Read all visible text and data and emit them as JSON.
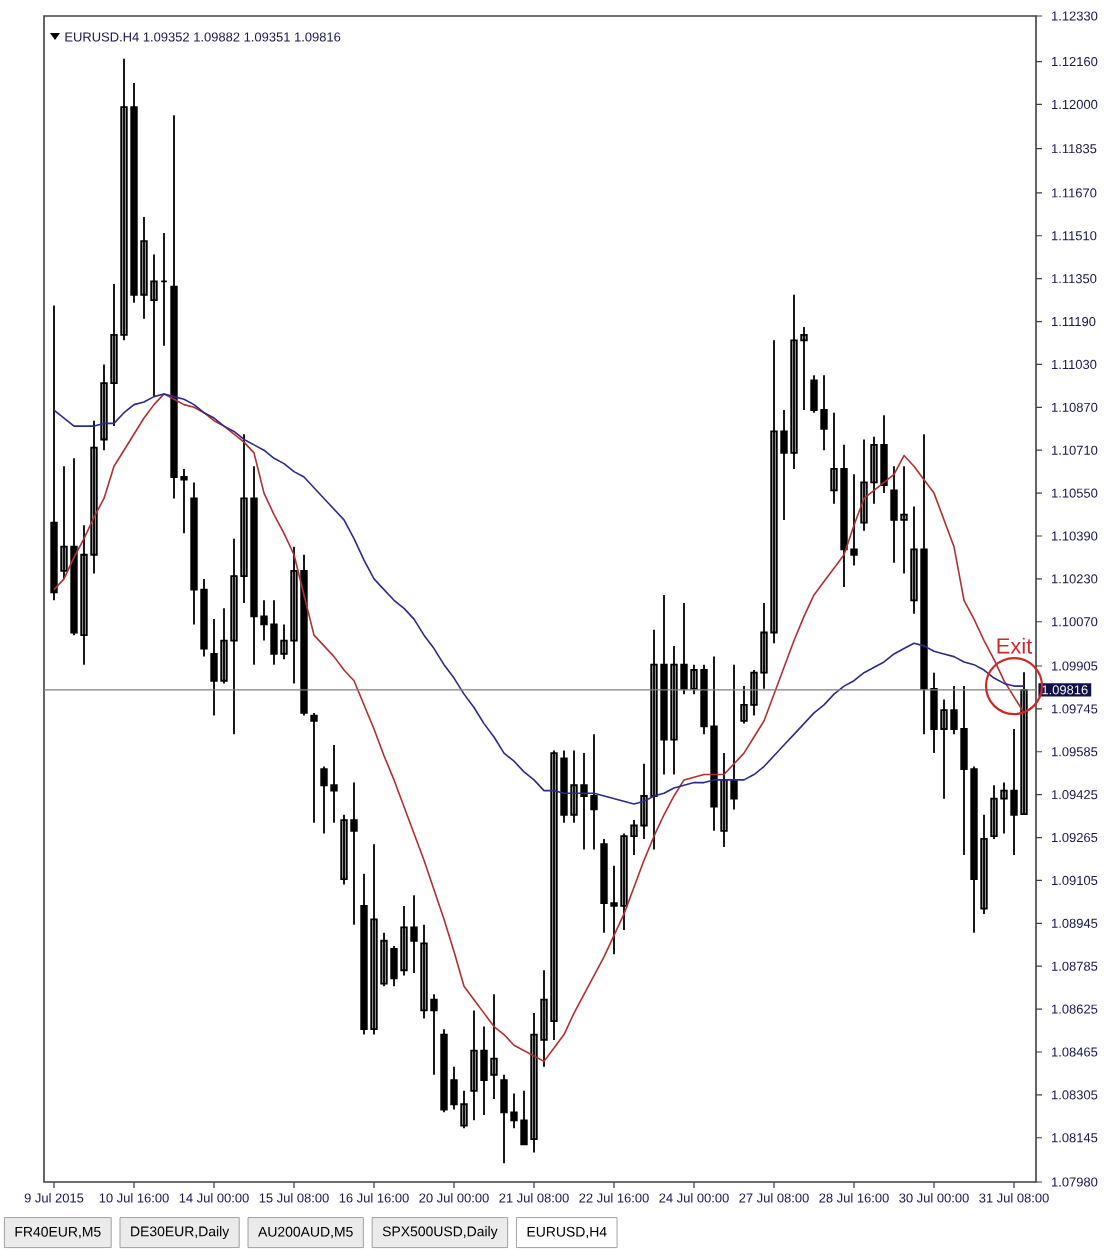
{
  "chart_data": {
    "type": "candlestick",
    "title": "EURUSD.H4  1.09352 1.09882 1.09351 1.09816",
    "color": "#000000",
    "categories": [
      "9 Jul 2015",
      null,
      null,
      null,
      null,
      null,
      null,
      null,
      "10 Jul 16:00",
      null,
      null,
      null,
      null,
      null,
      null,
      null,
      "14 Jul 00:00",
      null,
      null,
      null,
      null,
      null,
      null,
      null,
      "15 Jul 08:00",
      null,
      null,
      null,
      null,
      null,
      null,
      null,
      "16 Jul 16:00",
      null,
      null,
      null,
      null,
      null,
      null,
      null,
      "20 Jul 00:00",
      null,
      null,
      null,
      null,
      null,
      null,
      null,
      "21 Jul 08:00",
      null,
      null,
      null,
      null,
      null,
      null,
      null,
      "22 Jul 16:00",
      null,
      null,
      null,
      null,
      null,
      null,
      null,
      "24 Jul 00:00",
      null,
      null,
      null,
      null,
      null,
      null,
      null,
      "27 Jul 08:00",
      null,
      null,
      null,
      null,
      null,
      null,
      null,
      "28 Jul 16:00",
      null,
      null,
      null,
      null,
      null,
      null,
      null,
      "30 Jul 00:00",
      null,
      null,
      null,
      null,
      null,
      null,
      null,
      "31 Jul 08:00",
      null
    ],
    "ohlc": [
      [
        1.1044,
        1.1125,
        1.1015,
        1.1018
      ],
      [
        1.1026,
        1.1065,
        1.1023,
        1.1035
      ],
      [
        1.1035,
        1.1068,
        1.1002,
        1.1003
      ],
      [
        1.1002,
        1.1043,
        1.0991,
        1.1032
      ],
      [
        1.1032,
        1.1082,
        1.1025,
        1.1072
      ],
      [
        1.1075,
        1.1103,
        1.1071,
        1.1096
      ],
      [
        1.1096,
        1.1133,
        1.108,
        1.1114
      ],
      [
        1.1114,
        1.1217,
        1.1112,
        1.1199
      ],
      [
        1.1199,
        1.1208,
        1.1126,
        1.1129
      ],
      [
        1.1129,
        1.1158,
        1.112,
        1.1149
      ],
      [
        1.1127,
        1.1144,
        1.1091,
        1.1134
      ],
      [
        1.1134,
        1.1152,
        1.111,
        1.1134
      ],
      [
        1.1132,
        1.1196,
        1.1053,
        1.1061
      ],
      [
        1.1061,
        1.1064,
        1.104,
        1.106
      ],
      [
        1.1053,
        1.1059,
        1.1006,
        1.1019
      ],
      [
        1.1019,
        1.1023,
        1.0994,
        1.0997
      ],
      [
        1.0995,
        1.1008,
        1.0972,
        1.0985
      ],
      [
        1.0985,
        1.1012,
        1.0984,
        1.1
      ],
      [
        1.1,
        1.1038,
        1.0965,
        1.1024
      ],
      [
        1.1024,
        1.1077,
        1.1014,
        1.1053
      ],
      [
        1.1053,
        1.1065,
        1.0991,
        1.1009
      ],
      [
        1.1009,
        1.1015,
        1.1,
        1.1006
      ],
      [
        1.1006,
        1.1015,
        1.0991,
        1.0995
      ],
      [
        1.0995,
        1.1006,
        1.0993,
        1.1
      ],
      [
        1.1,
        1.1035,
        1.0984,
        1.1026
      ],
      [
        1.1026,
        1.1032,
        1.0972,
        1.0973
      ],
      [
        1.0972,
        1.0973,
        1.0932,
        1.097
      ],
      [
        1.0952,
        1.0953,
        1.0928,
        1.0946
      ],
      [
        1.0946,
        1.0961,
        1.0932,
        1.0944
      ],
      [
        1.0911,
        1.0935,
        1.0909,
        1.0933
      ],
      [
        1.0933,
        1.0947,
        1.0894,
        1.0929
      ],
      [
        1.0901,
        1.0913,
        1.0853,
        1.0855
      ],
      [
        1.0855,
        1.0924,
        1.0853,
        1.0896
      ],
      [
        1.0872,
        1.0891,
        1.0871,
        1.0888
      ],
      [
        1.0885,
        1.0886,
        1.0871,
        1.0874
      ],
      [
        1.0877,
        1.0901,
        1.0875,
        1.0893
      ],
      [
        1.0893,
        1.0905,
        1.0876,
        1.0888
      ],
      [
        1.0862,
        1.0894,
        1.0859,
        1.0887
      ],
      [
        1.0866,
        1.0868,
        1.0838,
        1.0862
      ],
      [
        1.0853,
        1.0855,
        1.0824,
        1.0825
      ],
      [
        1.0836,
        1.0841,
        1.0825,
        1.0827
      ],
      [
        1.0819,
        1.0832,
        1.0818,
        1.0827
      ],
      [
        1.0832,
        1.0862,
        1.0821,
        1.0847
      ],
      [
        1.0847,
        1.0856,
        1.0823,
        1.0836
      ],
      [
        1.0838,
        1.0868,
        1.0829,
        1.0844
      ],
      [
        1.0836,
        1.0838,
        1.0805,
        1.0824
      ],
      [
        1.0824,
        1.0831,
        1.0818,
        1.0821
      ],
      [
        1.0821,
        1.0832,
        1.0812,
        1.0812
      ],
      [
        1.0814,
        1.0861,
        1.0809,
        1.0853
      ],
      [
        1.0851,
        1.0877,
        1.0841,
        1.0866
      ],
      [
        1.0858,
        1.0959,
        1.0851,
        1.0958
      ],
      [
        1.0956,
        1.0959,
        1.0932,
        1.0935
      ],
      [
        1.0935,
        1.0959,
        1.0932,
        1.0946
      ],
      [
        1.0946,
        1.0958,
        1.0922,
        1.0942
      ],
      [
        1.0942,
        1.0965,
        1.0922,
        1.0937
      ],
      [
        1.0924,
        1.0926,
        1.0891,
        1.0902
      ],
      [
        1.0902,
        1.0916,
        1.0883,
        1.0901
      ],
      [
        1.0901,
        1.0928,
        1.0892,
        1.0927
      ],
      [
        1.0927,
        1.0933,
        1.092,
        1.0931
      ],
      [
        1.0931,
        1.0954,
        1.0926,
        1.0942
      ],
      [
        1.0942,
        1.1004,
        1.0922,
        1.0991
      ],
      [
        1.0991,
        1.1017,
        1.095,
        1.0963
      ],
      [
        1.0963,
        1.0998,
        1.095,
        1.0991
      ],
      [
        1.0991,
        1.1014,
        1.098,
        1.0982
      ],
      [
        1.0982,
        1.0991,
        1.098,
        1.0989
      ],
      [
        1.0989,
        1.0991,
        1.0965,
        1.0968
      ],
      [
        1.0968,
        1.0994,
        1.0929,
        1.0938
      ],
      [
        1.0929,
        1.0958,
        1.0923,
        1.0948
      ],
      [
        1.0948,
        1.0991,
        1.0937,
        1.0941
      ],
      [
        1.097,
        1.0983,
        1.0969,
        1.0976
      ],
      [
        1.0976,
        1.0989,
        1.0972,
        1.0988
      ],
      [
        1.0988,
        1.1014,
        1.0982,
        1.1003
      ],
      [
        1.1003,
        1.1112,
        1.0999,
        1.1078
      ],
      [
        1.1078,
        1.1086,
        1.1045,
        1.107
      ],
      [
        1.107,
        1.1129,
        1.1064,
        1.1112
      ],
      [
        1.1112,
        1.1117,
        1.1086,
        1.1114
      ],
      [
        1.1097,
        1.1099,
        1.1085,
        1.1086
      ],
      [
        1.1086,
        1.1099,
        1.1071,
        1.1079
      ],
      [
        1.1056,
        1.1085,
        1.1051,
        1.1064
      ],
      [
        1.1064,
        1.1073,
        1.102,
        1.1034
      ],
      [
        1.1034,
        1.1062,
        1.1028,
        1.1032
      ],
      [
        1.1044,
        1.1075,
        1.1041,
        1.1059
      ],
      [
        1.1059,
        1.1076,
        1.1051,
        1.1073
      ],
      [
        1.1073,
        1.1084,
        1.1055,
        1.1058
      ],
      [
        1.1056,
        1.1065,
        1.1029,
        1.1045
      ],
      [
        1.1045,
        1.1065,
        1.1025,
        1.1047
      ],
      [
        1.1015,
        1.105,
        1.101,
        1.1034
      ],
      [
        1.1034,
        1.1077,
        1.0965,
        1.0982
      ],
      [
        1.0982,
        1.0988,
        1.0958,
        1.0967
      ],
      [
        1.0967,
        1.0978,
        1.0941,
        1.0974
      ],
      [
        1.0974,
        1.0983,
        1.0965,
        1.0967
      ],
      [
        1.0967,
        1.0983,
        1.092,
        1.0952
      ],
      [
        1.0952,
        1.0953,
        1.0891,
        1.0911
      ],
      [
        1.09,
        1.0935,
        1.0898,
        1.0926
      ],
      [
        1.0927,
        1.0946,
        1.0926,
        1.0941
      ],
      [
        1.0941,
        1.0947,
        1.0928,
        1.0944
      ],
      [
        1.0944,
        1.0967,
        1.092,
        1.0935
      ],
      [
        1.09352,
        1.09882,
        1.09351,
        1.09816
      ]
    ],
    "series": [
      {
        "type": "line",
        "color": "#b03030",
        "values": [
          1.1019,
          1.1023,
          1.1031,
          1.1038,
          1.1046,
          1.1053,
          1.1065,
          1.1071,
          1.1077,
          1.1083,
          1.1088,
          1.1092,
          1.109,
          1.1088,
          1.1087,
          1.1085,
          1.1082,
          1.108,
          1.1077,
          1.1074,
          1.107,
          1.1055,
          1.1047,
          1.104,
          1.1032,
          1.1017,
          1.1002,
          1.0998,
          1.0994,
          1.0989,
          1.0985,
          1.0976,
          1.0967,
          1.0957,
          1.0948,
          1.0938,
          1.0928,
          1.0918,
          1.0907,
          1.0896,
          1.0884,
          1.0871,
          1.0866,
          1.0861,
          1.0856,
          1.0853,
          1.0849,
          1.0847,
          1.0845,
          1.0843,
          1.0848,
          1.0853,
          1.0861,
          1.0868,
          1.0875,
          1.0882,
          1.089,
          1.0898,
          1.0908,
          1.0918,
          1.0927,
          1.0935,
          1.0942,
          1.0948,
          1.0949,
          1.095,
          1.095,
          1.095,
          1.0954,
          1.0958,
          1.0964,
          1.097,
          1.098,
          1.099,
          1.1,
          1.1009,
          1.1017,
          1.1022,
          1.1027,
          1.1032,
          1.1043,
          1.1053,
          1.1056,
          1.1059,
          1.1062,
          1.1069,
          1.1065,
          1.106,
          1.1055,
          1.1045,
          1.1035,
          1.1015,
          1.1008,
          1.1,
          1.0993,
          1.0985,
          1.0979,
          1.0973
        ]
      },
      {
        "type": "line",
        "color": "#2b2b8c",
        "values": [
          1.1086,
          1.1083,
          1.108,
          1.108,
          1.108,
          1.1081,
          1.1081,
          1.1085,
          1.1088,
          1.1089,
          1.1091,
          1.1092,
          1.1091,
          1.109,
          1.1088,
          1.1085,
          1.1083,
          1.108,
          1.1078,
          1.1075,
          1.1073,
          1.1071,
          1.1068,
          1.1066,
          1.1063,
          1.1061,
          1.1057,
          1.1053,
          1.1049,
          1.1045,
          1.1038,
          1.103,
          1.1023,
          1.1019,
          1.1015,
          1.1012,
          1.1008,
          1.1002,
          1.0997,
          1.0991,
          1.0986,
          1.098,
          1.0975,
          1.0969,
          1.0964,
          1.0958,
          1.0955,
          1.0951,
          1.0948,
          1.0944,
          1.0944,
          1.0943,
          1.0943,
          1.0943,
          1.0943,
          1.0942,
          1.0941,
          1.094,
          1.0939,
          1.094,
          1.0942,
          1.0943,
          1.0945,
          1.0946,
          1.0947,
          1.0947,
          1.0948,
          1.0948,
          1.0948,
          1.0948,
          1.095,
          1.0953,
          1.0957,
          1.0961,
          1.0965,
          1.0969,
          1.0973,
          1.0976,
          1.098,
          1.0983,
          1.0985,
          1.0988,
          1.099,
          1.0992,
          1.0995,
          1.0997,
          1.0999,
          1.0998,
          1.0996,
          1.0995,
          1.0994,
          1.0992,
          1.0991,
          1.0989,
          1.0986,
          1.0984,
          1.0983,
          1.0983
        ]
      }
    ],
    "ylim": [
      1.0798,
      1.1233
    ],
    "yticks": [
      {
        "value": 1.1233,
        "label": "1.12330"
      },
      {
        "value": 1.1216,
        "label": "1.12160"
      },
      {
        "value": 1.12,
        "label": "1.12000"
      },
      {
        "value": 1.11835,
        "label": "1.11835"
      },
      {
        "value": 1.1167,
        "label": "1.11670"
      },
      {
        "value": 1.1151,
        "label": "1.11510"
      },
      {
        "value": 1.1135,
        "label": "1.11350"
      },
      {
        "value": 1.1119,
        "label": "1.11190"
      },
      {
        "value": 1.1103,
        "label": "1.11030"
      },
      {
        "value": 1.1087,
        "label": "1.10870"
      },
      {
        "value": 1.1071,
        "label": "1.10710"
      },
      {
        "value": 1.1055,
        "label": "1.10550"
      },
      {
        "value": 1.1039,
        "label": "1.10390"
      },
      {
        "value": 1.1023,
        "label": "1.10230"
      },
      {
        "value": 1.1007,
        "label": "1.10070"
      },
      {
        "value": 1.09905,
        "label": "1.09905"
      },
      {
        "value": 1.09745,
        "label": "1.09745"
      },
      {
        "value": 1.09585,
        "label": "1.09585"
      },
      {
        "value": 1.09425,
        "label": "1.09425"
      },
      {
        "value": 1.09265,
        "label": "1.09265"
      },
      {
        "value": 1.09105,
        "label": "1.09105"
      },
      {
        "value": 1.08945,
        "label": "1.08945"
      },
      {
        "value": 1.08785,
        "label": "1.08785"
      },
      {
        "value": 1.08625,
        "label": "1.08625"
      },
      {
        "value": 1.08465,
        "label": "1.08465"
      },
      {
        "value": 1.08305,
        "label": "1.08305"
      },
      {
        "value": 1.08145,
        "label": "1.08145"
      },
      {
        "value": 1.0798,
        "label": "1.07980"
      }
    ],
    "ref_lines": [
      {
        "axis": "y",
        "value": 1.09816,
        "label": "1.09816",
        "color": "#808080"
      }
    ],
    "annotations": [
      {
        "text": "Exit",
        "x": "31 Jul 08:00",
        "y": 1.0983
      },
      "FR40EUR,M5",
      "DE30EUR,Daily",
      "AU200AUD,M5",
      "SPX500USD,Daily",
      "EURUSD,H4"
    ]
  }
}
